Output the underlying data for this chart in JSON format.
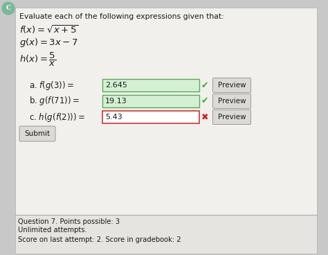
{
  "title": "Evaluate each of the following expressions given that:",
  "part_a_value": "2.645",
  "part_b_value": "19.13",
  "part_c_value": "5.43",
  "submit_label": "Submit",
  "footer_line1": "Question 7. Points possible: 3",
  "footer_line2": "Unlimited attempts.",
  "footer_line3": "Score on last attempt: 2. Score in gradebook: 2",
  "bg_color": "#c8c8c8",
  "panel_color": "#f2f0ed",
  "footer_color": "#e6e4e0",
  "input_correct_bg": "#d4f0d4",
  "input_incorrect_bg": "#ffffff",
  "input_border_correct": "#55aa55",
  "input_border_incorrect": "#cc3333",
  "button_color": "#dddad5",
  "button_border": "#999999",
  "text_color": "#1a1a1a",
  "check_green": "#44aa33",
  "cross_red": "#cc2222",
  "panel_border": "#bbbbbb",
  "footer_border": "#aaaaaa",
  "c_circle_color": "#7ab89a"
}
